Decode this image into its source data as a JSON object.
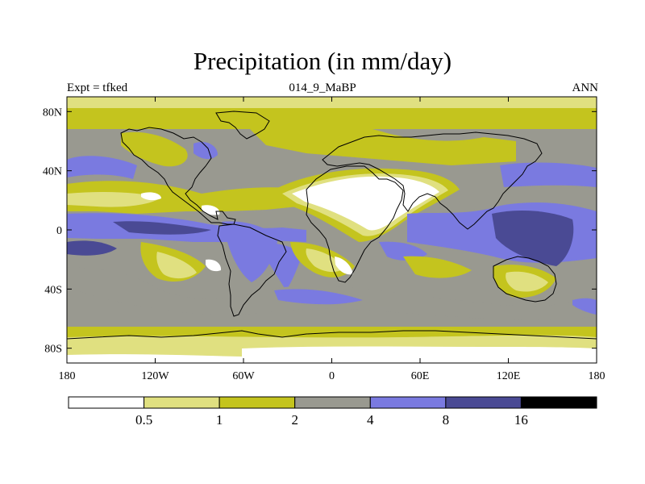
{
  "header": {
    "title": "Precipitation (in mm/day)",
    "left": "Expt = tfked",
    "center": "014_9_MaBP",
    "right": "ANN"
  },
  "map": {
    "lon_ticks": [
      {
        "value": -180,
        "label": "180"
      },
      {
        "value": -120,
        "label": "120W"
      },
      {
        "value": -60,
        "label": "60W"
      },
      {
        "value": 0,
        "label": "0"
      },
      {
        "value": 60,
        "label": "60E"
      },
      {
        "value": 120,
        "label": "120E"
      },
      {
        "value": 180,
        "label": "180"
      }
    ],
    "lat_ticks": [
      {
        "value": 80,
        "label": "80N"
      },
      {
        "value": 40,
        "label": "40N"
      },
      {
        "value": 0,
        "label": "0"
      },
      {
        "value": -40,
        "label": "40S"
      },
      {
        "value": -80,
        "label": "80S"
      }
    ]
  },
  "colorbar": {
    "colors": [
      "#ffffff",
      "#e0e080",
      "#c4c41e",
      "#999990",
      "#7a7ae0",
      "#4a4a94",
      "#000000"
    ],
    "labels": [
      "0.5",
      "1",
      "2",
      "4",
      "8",
      "16"
    ]
  }
}
